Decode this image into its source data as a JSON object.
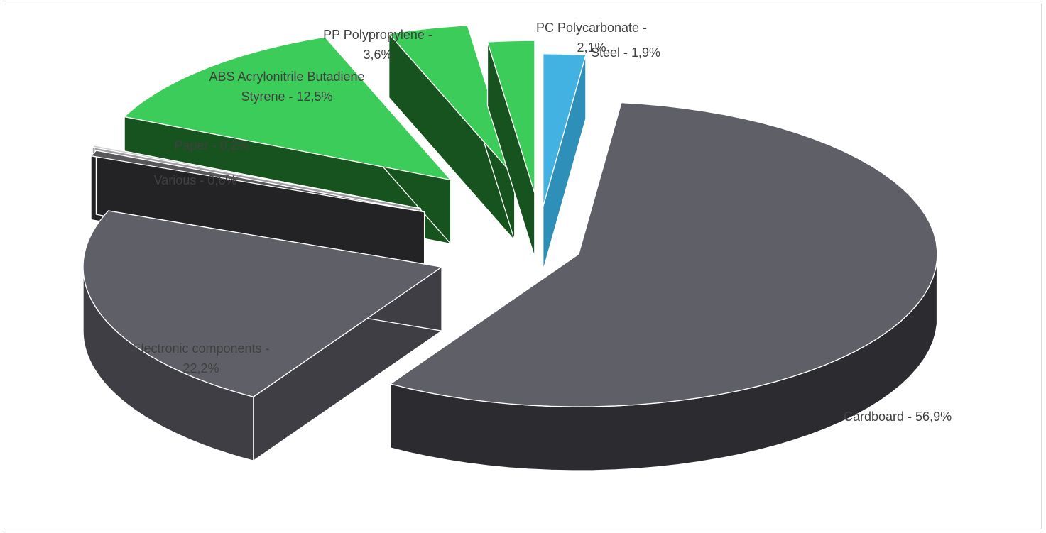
{
  "chart_data": {
    "type": "pie",
    "title": "",
    "slices": [
      {
        "name": "Steel",
        "value": 1.9,
        "label_lines": [
          "Steel - 1,9%"
        ],
        "color_top": "#41b2e2",
        "color_side": "#2e8fb8"
      },
      {
        "name": "Cardboard",
        "value": 56.9,
        "label_lines": [
          "Cardboard - 56,9%"
        ],
        "color_top": "#5f6067",
        "color_side": "#2c2c30"
      },
      {
        "name": "Electronic components",
        "value": 22.2,
        "label_lines": [
          "Electronic components -",
          "22,2%"
        ],
        "color_top": "#5f6067",
        "color_side": "#3e3e44"
      },
      {
        "name": "Various",
        "value": 0.6,
        "label_lines": [
          "Various - 0,6%"
        ],
        "color_top": "#58585c",
        "color_side": "#232326"
      },
      {
        "name": "Paper",
        "value": 0.2,
        "label_lines": [
          "Paper - 0,2%"
        ],
        "color_top": "#cfcfd2",
        "color_side": "#a0a0a4"
      },
      {
        "name": "ABS Acrylonitrile Butadiene Styrene",
        "value": 12.5,
        "label_lines": [
          "ABS Acrylonitrile Butadiene",
          "Styrene - 12,5%"
        ],
        "color_top": "#3ccc5a",
        "color_side": "#17531f"
      },
      {
        "name": "PP Polypropylene",
        "value": 3.6,
        "label_lines": [
          "PP Polypropylene -",
          "3,6%"
        ],
        "color_top": "#3ccc5a",
        "color_side": "#17531f"
      },
      {
        "name": "PC Polycarbonate",
        "value": 2.1,
        "label_lines": [
          "PC Polycarbonate -",
          "2,1%"
        ],
        "color_top": "#3ccc5a",
        "color_side": "#17531f"
      }
    ],
    "exploded": true,
    "three_d": true,
    "legend": "none"
  }
}
